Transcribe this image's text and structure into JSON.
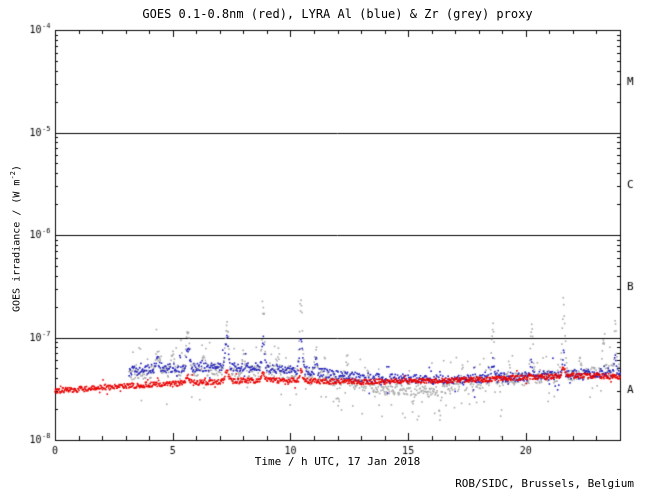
{
  "chart_data": {
    "type": "scatter",
    "title": "GOES 0.1-0.8nm (red), LYRA Al (blue) & Zr (grey) proxy",
    "xlabel": "Time / h UTC, 17 Jan 2018",
    "ylabel_parts": {
      "pre": "GOES irradiance / (W m",
      "sup": "-2",
      "post": ")"
    },
    "footer": "ROB/SIDC, Brussels, Belgium",
    "xlim": [
      0,
      24
    ],
    "ylim_log10": [
      -8,
      -4
    ],
    "x_major_ticks": [
      0,
      5,
      10,
      15,
      20
    ],
    "x_minor_step_h": 1,
    "y_decade_exponents": [
      -8,
      -7,
      -6,
      -5,
      -4
    ],
    "flare_class_lines_log10": [
      -7,
      -6,
      -5
    ],
    "flare_classes": [
      {
        "label": "A",
        "log10_mid": -7.5
      },
      {
        "label": "B",
        "log10_mid": -6.5
      },
      {
        "label": "C",
        "log10_mid": -5.5
      },
      {
        "label": "M",
        "log10_mid": -4.5
      }
    ],
    "axis_color": "#000000",
    "series": [
      {
        "name": "LYRA Zr proxy",
        "color": "#a9a9a9",
        "start_h": 3.15,
        "end_h": 24,
        "step_h": 0.02,
        "noise_log10": 0.06,
        "extra_scatter": {
          "prob": 0.15,
          "amp": 0.28
        },
        "baseline": [
          [
            3.15,
            -7.36
          ],
          [
            4,
            -7.34
          ],
          [
            5,
            -7.33
          ],
          [
            6,
            -7.32
          ],
          [
            7,
            -7.32
          ],
          [
            8,
            -7.33
          ],
          [
            9,
            -7.33
          ],
          [
            10,
            -7.34
          ],
          [
            11,
            -7.36
          ],
          [
            12,
            -7.42
          ],
          [
            13,
            -7.46
          ],
          [
            14,
            -7.5
          ],
          [
            15,
            -7.5
          ],
          [
            16,
            -7.52
          ],
          [
            17,
            -7.48
          ],
          [
            18,
            -7.44
          ],
          [
            19,
            -7.41
          ],
          [
            20,
            -7.4
          ],
          [
            21,
            -7.38
          ],
          [
            22,
            -7.36
          ],
          [
            23,
            -7.34
          ],
          [
            24,
            -7.3
          ]
        ],
        "spikes": [
          [
            4.35,
            0.18,
            0.12
          ],
          [
            5.0,
            0.18,
            0.08
          ],
          [
            5.65,
            0.42,
            0.1
          ],
          [
            6.3,
            0.15,
            0.08
          ],
          [
            7.3,
            0.48,
            0.1
          ],
          [
            8.0,
            0.18,
            0.06
          ],
          [
            8.85,
            0.58,
            0.08
          ],
          [
            9.5,
            0.18,
            0.06
          ],
          [
            10.45,
            0.68,
            0.09
          ],
          [
            11.1,
            0.22,
            0.06
          ],
          [
            12.4,
            0.2,
            0.07
          ],
          [
            13.3,
            0.14,
            0.05
          ],
          [
            17.3,
            0.18,
            0.05
          ],
          [
            18.6,
            0.55,
            0.08
          ],
          [
            19.3,
            0.18,
            0.05
          ],
          [
            20.25,
            0.5,
            0.08
          ],
          [
            21.6,
            0.65,
            0.09
          ],
          [
            22.3,
            0.18,
            0.05
          ],
          [
            23.3,
            0.32,
            0.06
          ],
          [
            23.8,
            0.45,
            0.05
          ]
        ],
        "dips": [
          [
            12.05,
            -0.22,
            0.05
          ],
          [
            15.2,
            -0.18,
            0.05
          ],
          [
            16.35,
            -0.3,
            0.05
          ],
          [
            18.95,
            -0.5,
            0.03
          ]
        ]
      },
      {
        "name": "LYRA Al proxy",
        "color": "#2222bb",
        "start_h": 3.15,
        "end_h": 24,
        "step_h": 0.025,
        "noise_log10": 0.045,
        "extra_scatter": {
          "prob": 0.08,
          "amp": 0.15
        },
        "baseline": [
          [
            3.15,
            -7.33
          ],
          [
            4,
            -7.31
          ],
          [
            5,
            -7.3
          ],
          [
            6,
            -7.29
          ],
          [
            7,
            -7.28
          ],
          [
            8,
            -7.29
          ],
          [
            9,
            -7.3
          ],
          [
            10,
            -7.31
          ],
          [
            11,
            -7.33
          ],
          [
            12,
            -7.37
          ],
          [
            13,
            -7.39
          ],
          [
            14,
            -7.4
          ],
          [
            15,
            -7.4
          ],
          [
            16,
            -7.41
          ],
          [
            17,
            -7.41
          ],
          [
            18,
            -7.4
          ],
          [
            19,
            -7.39
          ],
          [
            20,
            -7.38
          ],
          [
            21,
            -7.37
          ],
          [
            22,
            -7.36
          ],
          [
            23,
            -7.35
          ],
          [
            24,
            -7.33
          ]
        ],
        "spikes": [
          [
            4.35,
            0.08,
            0.1
          ],
          [
            5.65,
            0.2,
            0.09
          ],
          [
            7.3,
            0.28,
            0.09
          ],
          [
            8.85,
            0.3,
            0.07
          ],
          [
            10.45,
            0.33,
            0.08
          ],
          [
            11.1,
            0.12,
            0.05
          ],
          [
            18.6,
            0.18,
            0.06
          ],
          [
            20.25,
            0.15,
            0.06
          ],
          [
            21.6,
            0.2,
            0.07
          ],
          [
            23.8,
            0.15,
            0.05
          ]
        ],
        "dips": []
      },
      {
        "name": "GOES 0.1-0.8nm",
        "color": "#e80000",
        "start_h": 0,
        "end_h": 24,
        "step_h": 0.02,
        "noise_log10": 0.025,
        "extra_scatter": {
          "prob": 0.05,
          "amp": 0.06
        },
        "baseline": [
          [
            0,
            -7.52
          ],
          [
            2,
            -7.49
          ],
          [
            4,
            -7.46
          ],
          [
            6,
            -7.44
          ],
          [
            8,
            -7.42
          ],
          [
            10,
            -7.42
          ],
          [
            12,
            -7.43
          ],
          [
            14,
            -7.43
          ],
          [
            16,
            -7.42
          ],
          [
            18,
            -7.41
          ],
          [
            20,
            -7.39
          ],
          [
            22,
            -7.37
          ],
          [
            24,
            -7.38
          ]
        ],
        "spikes": [
          [
            5.65,
            0.06,
            0.1
          ],
          [
            7.3,
            0.1,
            0.1
          ],
          [
            8.85,
            0.08,
            0.08
          ],
          [
            10.45,
            0.1,
            0.08
          ],
          [
            21.6,
            0.08,
            0.08
          ]
        ],
        "dips": []
      }
    ]
  }
}
